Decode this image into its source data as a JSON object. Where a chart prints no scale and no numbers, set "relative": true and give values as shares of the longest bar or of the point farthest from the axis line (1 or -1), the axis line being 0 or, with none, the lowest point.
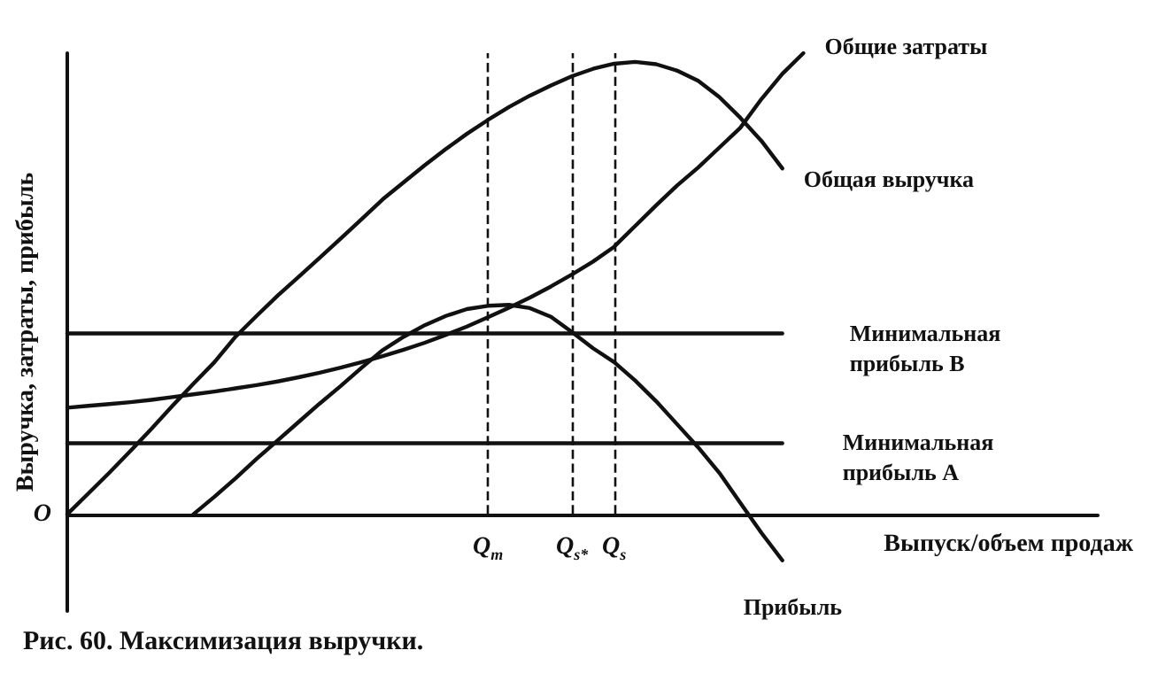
{
  "chart_data": {
    "type": "line",
    "title": "Рис. 60. Максимизация выручки.",
    "ylabel": "Выручка, затраты, прибыль",
    "xlabel": "Выпуск/объем продаж",
    "relative": true,
    "legend": false,
    "grid": false,
    "marker": "none",
    "line_style": "solid",
    "categories": [
      null,
      null,
      null,
      null,
      null,
      null,
      null,
      null,
      null,
      null,
      null,
      null,
      null,
      null,
      null,
      null,
      null,
      null,
      null,
      null,
      "Q$_{m}$",
      null,
      null,
      null,
      "Q$_{s*}$",
      null,
      "Q$_{s}$",
      null,
      null,
      null,
      null,
      null,
      null,
      null,
      null,
      null,
      null,
      null,
      null,
      null,
      null,
      null,
      null,
      null,
      null,
      null,
      null,
      null,
      null,
      null
    ],
    "annotations": [
      "O"
    ],
    "ref_lines": [
      {
        "axis": "x",
        "value": "Q$_{m}$",
        "line_style": "dashed"
      },
      {
        "axis": "x",
        "value": "Q$_{s*}$",
        "line_style": "dashed"
      },
      {
        "axis": "x",
        "value": "Q$_{s}$",
        "line_style": "dashed"
      }
    ],
    "series": [
      {
        "name": "Общие затраты",
        "color": "#111111",
        "values": [
          0.231,
          0.235,
          0.239,
          0.243,
          0.248,
          0.254,
          0.26,
          0.266,
          0.273,
          0.28,
          0.288,
          0.297,
          0.307,
          0.318,
          0.33,
          0.343,
          0.357,
          0.372,
          0.389,
          0.407,
          0.427,
          0.448,
          0.47,
          0.494,
          0.52,
          0.548,
          0.58,
          0.625,
          0.67,
          0.713,
          0.752,
          0.795,
          0.838,
          0.9,
          0.955,
          1,
          null,
          null,
          null,
          null,
          null,
          null,
          null,
          null,
          null,
          null,
          null,
          null,
          null,
          null
        ]
      },
      {
        "name": "Общая выручка",
        "color": "#111111",
        "values": [
          0,
          0.045,
          0.09,
          0.137,
          0.185,
          0.235,
          0.283,
          0.33,
          0.385,
          0.43,
          0.474,
          0.515,
          0.556,
          0.598,
          0.64,
          0.683,
          0.72,
          0.757,
          0.792,
          0.825,
          0.855,
          0.883,
          0.908,
          0.93,
          0.95,
          0.966,
          0.977,
          0.981,
          0.976,
          0.962,
          0.94,
          0.905,
          0.86,
          0.81,
          0.75,
          null,
          null,
          null,
          null,
          null,
          null,
          null,
          null,
          null,
          null,
          null,
          null,
          null,
          null,
          null
        ]
      },
      {
        "name": "Минимальная прибыль B",
        "color": "#111111",
        "values": [
          0.392,
          0.392,
          0.392,
          0.392,
          0.392,
          0.392,
          0.392,
          0.392,
          0.392,
          0.392,
          0.392,
          0.392,
          0.392,
          0.392,
          0.392,
          0.392,
          0.392,
          0.392,
          0.392,
          0.392,
          0.392,
          0.392,
          0.392,
          0.392,
          0.392,
          0.392,
          0.392,
          0.392,
          0.392,
          0.392,
          0.392,
          0.392,
          0.392,
          0.392,
          0.392,
          null,
          null,
          null,
          null,
          null,
          null,
          null,
          null,
          null,
          null,
          null,
          null,
          null,
          null,
          null
        ]
      },
      {
        "name": "Минимальная прибыль A",
        "color": "#111111",
        "values": [
          0.154,
          0.154,
          0.154,
          0.154,
          0.154,
          0.154,
          0.154,
          0.154,
          0.154,
          0.154,
          0.154,
          0.154,
          0.154,
          0.154,
          0.154,
          0.154,
          0.154,
          0.154,
          0.154,
          0.154,
          0.154,
          0.154,
          0.154,
          0.154,
          0.154,
          0.154,
          0.154,
          0.154,
          0.154,
          0.154,
          0.154,
          0.154,
          0.154,
          0.154,
          0.154,
          null,
          null,
          null,
          null,
          null,
          null,
          null,
          null,
          null,
          null,
          null,
          null,
          null,
          null,
          null
        ]
      },
      {
        "name": "Прибыль",
        "color": "#111111",
        "values": [
          null,
          null,
          null,
          null,
          null,
          null,
          0,
          0.038,
          0.078,
          0.12,
          0.16,
          0.2,
          0.24,
          0.278,
          0.318,
          0.356,
          0.385,
          0.41,
          0.43,
          0.445,
          0.452,
          0.454,
          0.447,
          0.428,
          0.395,
          0.36,
          0.33,
          0.29,
          0.245,
          0.195,
          0.145,
          0.09,
          0.025,
          -0.04,
          -0.1,
          null,
          null,
          null,
          null,
          null,
          null,
          null,
          null,
          null,
          null,
          null,
          null,
          null,
          null,
          null
        ]
      }
    ]
  }
}
